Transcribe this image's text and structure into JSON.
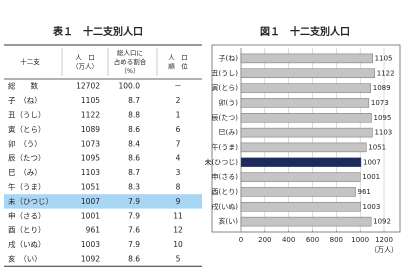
{
  "table": {
    "title": "表１　十二支別人口",
    "headers": [
      [
        "十二支"
      ],
      [
        "人　口",
        "（万人）"
      ],
      [
        "総人口に",
        "占める割合",
        "（%）"
      ],
      [
        "人　口",
        "順　位"
      ]
    ],
    "highlight_row": 8,
    "highlight_color": "#a9d6f5",
    "rows": [
      [
        "総　　数",
        "12702",
        "100.0",
        "－"
      ],
      [
        "子　（ね）",
        "1105",
        "8.7",
        "2"
      ],
      [
        "丑（うし）",
        "1122",
        "8.8",
        "1"
      ],
      [
        "寅（とら）",
        "1089",
        "8.6",
        "6"
      ],
      [
        "卯　（う）",
        "1073",
        "8.4",
        "7"
      ],
      [
        "辰（たつ）",
        "1095",
        "8.6",
        "4"
      ],
      [
        "巳　（み）",
        "1103",
        "8.7",
        "3"
      ],
      [
        "午（うま）",
        "1051",
        "8.3",
        "8"
      ],
      [
        "未（ひつじ）",
        "1007",
        "7.9",
        "9"
      ],
      [
        "申（さる）",
        "1001",
        "7.9",
        "11"
      ],
      [
        "酉（とり）",
        "961",
        "7.6",
        "12"
      ],
      [
        "戌（いぬ）",
        "1003",
        "7.9",
        "10"
      ],
      [
        "亥　（い）",
        "1092",
        "8.6",
        "5"
      ]
    ]
  },
  "chart_data": {
    "type": "barh",
    "title": "図１　十二支別人口",
    "x_label": "（万人）",
    "categories": [
      "子(ね)",
      "丑(うし)",
      "寅(とら)",
      "卯(う)",
      "辰(たつ)",
      "巳(み)",
      "午(うま)",
      "未(ひつじ)",
      "申(さる)",
      "酉(とり)",
      "戌(いぬ)",
      "亥(い)"
    ],
    "values": [
      1105,
      1122,
      1089,
      1073,
      1095,
      1103,
      1051,
      1007,
      1001,
      961,
      1003,
      1092
    ],
    "colors": [
      "#c4c4c4",
      "#c4c4c4",
      "#c4c4c4",
      "#c4c4c4",
      "#c4c4c4",
      "#c4c4c4",
      "#c4c4c4",
      "#1c2b5c",
      "#c4c4c4",
      "#c4c4c4",
      "#c4c4c4",
      "#c4c4c4"
    ],
    "xlim": [
      0,
      1200
    ],
    "xticks": [
      0,
      200,
      400,
      600,
      800,
      1000,
      1200
    ],
    "grid": true
  }
}
